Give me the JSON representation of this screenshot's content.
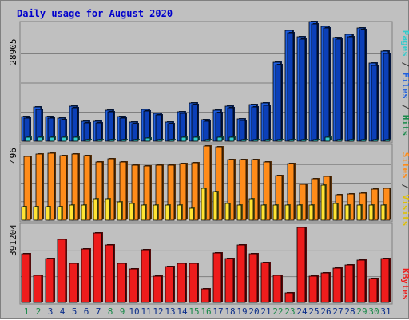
{
  "title": "Daily usage for August 2020",
  "colors": {
    "frame_bg": "#c0c0c0",
    "plot_bg": "#c0c0c0",
    "grid": "#808080",
    "title": "#0000cc",
    "hits": "#1f5fe0",
    "files": "#0b3fb8",
    "pages": "#33cccc",
    "visits": "#ff8c1a",
    "sites": "#ffe433",
    "kbytes": "#ee1c1c",
    "weekend_label": "#1a8a4a",
    "weekday_label": "#0b2e8a"
  },
  "legends": {
    "top": [
      {
        "text": "Pages",
        "color": "#33cccc"
      },
      {
        "text": " / ",
        "color": "#333333"
      },
      {
        "text": "Files",
        "color": "#1f5fe0"
      },
      {
        "text": " / ",
        "color": "#333333"
      },
      {
        "text": "Hits",
        "color": "#1a8a4a"
      }
    ],
    "middle": [
      {
        "text": "Sites",
        "color": "#ff8c1a"
      },
      {
        "text": " / ",
        "color": "#333333"
      },
      {
        "text": "Visits",
        "color": "#e0c000"
      }
    ],
    "bottom": [
      {
        "text": "KBytes",
        "color": "#ee1c1c"
      }
    ]
  },
  "chart_data": [
    {
      "type": "bar",
      "name": "hits-files-pages",
      "ylabel_max": "28905",
      "ylim": [
        0,
        28905
      ],
      "categories": [
        "1",
        "2",
        "3",
        "4",
        "5",
        "6",
        "7",
        "8",
        "9",
        "10",
        "11",
        "12",
        "13",
        "14",
        "15",
        "16",
        "17",
        "18",
        "19",
        "20",
        "21",
        "22",
        "23",
        "24",
        "25",
        "26",
        "27",
        "28",
        "29",
        "30",
        "31"
      ],
      "weekend_days": [
        "1",
        "2",
        "8",
        "9",
        "15",
        "16",
        "22",
        "23",
        "29",
        "30"
      ],
      "series": [
        {
          "name": "Hits",
          "values": [
            6000,
            8200,
            6000,
            5600,
            8500,
            4800,
            4800,
            7600,
            5900,
            4700,
            7800,
            6800,
            4600,
            7100,
            9300,
            5200,
            7500,
            8500,
            5400,
            8800,
            9200,
            19000,
            26700,
            25200,
            28900,
            27800,
            25100,
            25800,
            27400,
            18800,
            21700
          ]
        },
        {
          "name": "Files",
          "values": [
            5800,
            7900,
            5800,
            5400,
            8200,
            4600,
            4600,
            7300,
            5700,
            4500,
            7500,
            6600,
            4400,
            6900,
            9000,
            5000,
            7200,
            8200,
            5200,
            8500,
            8900,
            18700,
            26400,
            24900,
            28600,
            27500,
            24800,
            25500,
            27100,
            18500,
            21400
          ]
        },
        {
          "name": "Pages",
          "values": [
            1000,
            1000,
            1000,
            1000,
            1000,
            400,
            400,
            400,
            400,
            400,
            800,
            400,
            400,
            1000,
            1000,
            400,
            1000,
            1000,
            400,
            400,
            400,
            400,
            400,
            400,
            400,
            1000,
            400,
            400,
            400,
            400,
            400
          ]
        }
      ]
    },
    {
      "type": "bar",
      "name": "visits-sites",
      "ylabel_max": "496",
      "ylim": [
        0,
        496
      ],
      "categories": [
        "1",
        "2",
        "3",
        "4",
        "5",
        "6",
        "7",
        "8",
        "9",
        "10",
        "11",
        "12",
        "13",
        "14",
        "15",
        "16",
        "17",
        "18",
        "19",
        "20",
        "21",
        "22",
        "23",
        "24",
        "25",
        "26",
        "27",
        "28",
        "29",
        "30",
        "31"
      ],
      "series": [
        {
          "name": "Visits",
          "values": [
            420,
            440,
            445,
            430,
            440,
            425,
            385,
            405,
            385,
            365,
            360,
            365,
            365,
            375,
            380,
            490,
            485,
            400,
            400,
            400,
            385,
            295,
            375,
            240,
            275,
            290,
            170,
            175,
            180,
            205,
            210
          ]
        },
        {
          "name": "Sites",
          "values": [
            90,
            90,
            90,
            90,
            100,
            100,
            140,
            145,
            120,
            110,
            100,
            100,
            100,
            100,
            80,
            210,
            190,
            110,
            100,
            140,
            100,
            100,
            100,
            100,
            100,
            230,
            110,
            100,
            100,
            100,
            100
          ]
        }
      ]
    },
    {
      "type": "bar",
      "name": "kbytes",
      "ylabel_max": "391204",
      "ylim": [
        0,
        391204
      ],
      "categories": [
        "1",
        "2",
        "3",
        "4",
        "5",
        "6",
        "7",
        "8",
        "9",
        "10",
        "11",
        "12",
        "13",
        "14",
        "15",
        "16",
        "17",
        "18",
        "19",
        "20",
        "21",
        "22",
        "23",
        "24",
        "25",
        "26",
        "27",
        "28",
        "29",
        "30",
        "31"
      ],
      "series": [
        {
          "name": "KBytes",
          "values": [
            252000,
            139000,
            225000,
            325000,
            201000,
            277000,
            358000,
            298000,
            203000,
            171000,
            270000,
            135000,
            186000,
            201000,
            203000,
            70000,
            255000,
            225000,
            298000,
            253000,
            205000,
            138000,
            50000,
            387000,
            134000,
            152000,
            176000,
            195000,
            219000,
            123000,
            225000
          ]
        }
      ]
    }
  ]
}
